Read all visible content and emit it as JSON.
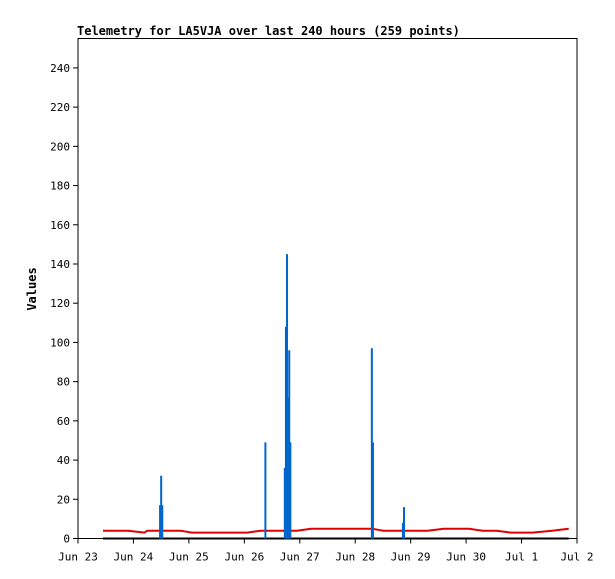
{
  "chart_data": {
    "type": "line",
    "title": "Telemetry for LA5VJA over last 240 hours (259 points)",
    "xlabel": "",
    "ylabel": "Values",
    "ylim": [
      0,
      255
    ],
    "yticks": [
      0,
      20,
      40,
      60,
      80,
      100,
      120,
      140,
      160,
      180,
      200,
      220,
      240
    ],
    "xlim": [
      "Jun 23",
      "Jul 2"
    ],
    "xticks": [
      "Jun 23",
      "Jun 24",
      "Jun 25",
      "Jun 26",
      "Jun 27",
      "Jun 28",
      "Jun 29",
      "Jun 30",
      "Jul 1",
      "Jul 2"
    ],
    "grid": false,
    "colors": {
      "red_series": "#e00000",
      "blue_series": "#0066cc",
      "black_series": "#000000"
    },
    "series": [
      {
        "color_key": "red_series",
        "x_days": [
          0.45,
          0.9,
          1.2,
          1.25,
          1.55,
          1.85,
          2.05,
          2.3,
          3.05,
          3.3,
          3.55,
          3.8,
          3.95,
          4.2,
          4.45,
          4.8,
          5.0,
          5.1,
          5.2,
          5.3,
          5.5,
          5.75,
          6.05,
          6.3,
          6.6,
          6.85,
          7.05,
          7.3,
          7.55,
          7.8,
          8.05,
          8.2,
          8.55,
          8.85
        ],
        "values": [
          4,
          4,
          3,
          4,
          4,
          4,
          3,
          3,
          3,
          4,
          4,
          4,
          4,
          5,
          5,
          5,
          5,
          5,
          5,
          5,
          4,
          4,
          4,
          4,
          5,
          5,
          5,
          4,
          4,
          3,
          3,
          3,
          4,
          5
        ]
      },
      {
        "color_key": "blue_series",
        "x_days": [
          1.48,
          1.5,
          1.52,
          3.38,
          3.73,
          3.75,
          3.77,
          3.79,
          3.81,
          3.83,
          5.3,
          5.32,
          5.86,
          5.88
        ],
        "values": [
          17,
          32,
          17,
          49,
          36,
          108,
          145,
          72,
          96,
          49,
          97,
          49,
          8,
          16
        ]
      },
      {
        "color_key": "black_series",
        "x_days": [
          0.45,
          8.85
        ],
        "values": [
          0,
          0
        ]
      }
    ]
  }
}
